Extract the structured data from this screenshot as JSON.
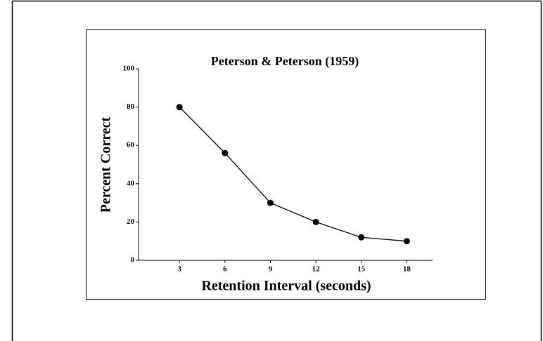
{
  "chart_data": {
    "type": "line",
    "title": "Peterson & Peterson (1959)",
    "x_label": "Retention Interval (seconds)",
    "y_label": "Percent Correct",
    "x": [
      3,
      6,
      9,
      12,
      15,
      18
    ],
    "series": [
      {
        "color": "#000000",
        "values": [
          80,
          56,
          30,
          20,
          12,
          10
        ]
      }
    ],
    "xlim": [
      0.3,
      19.7
    ],
    "xticks": [
      3,
      6,
      9,
      12,
      15,
      18
    ],
    "ylim": [
      0,
      100
    ],
    "yticks": [
      0,
      20,
      40,
      60,
      80,
      100
    ]
  }
}
